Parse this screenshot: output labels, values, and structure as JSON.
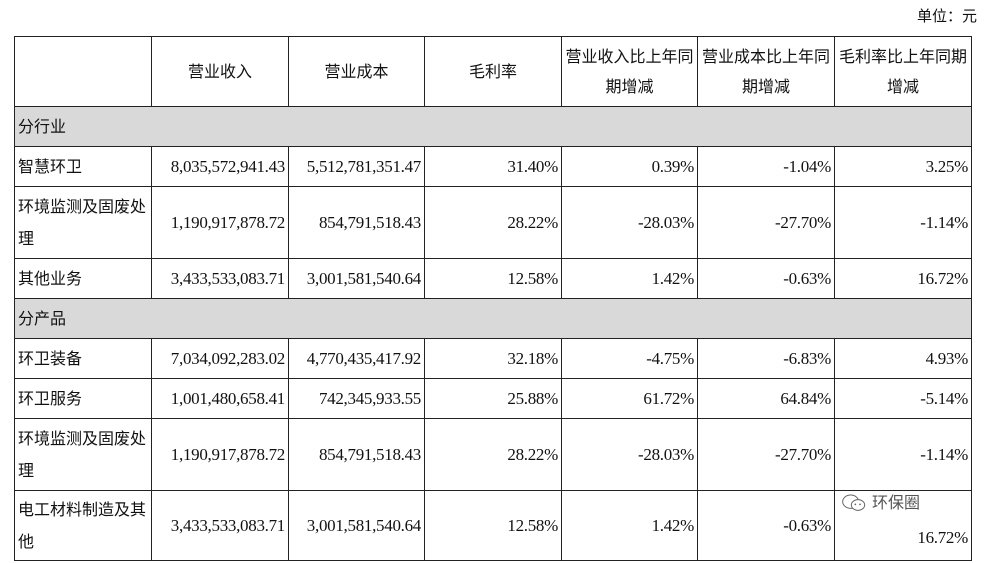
{
  "unit_label": "单位：元",
  "headers": [
    "",
    "营业收入",
    "营业成本",
    "毛利率",
    "营业收入比上年同期增减",
    "营业成本比上年同期增减",
    "毛利率比上年同期增减"
  ],
  "sections": [
    {
      "title": "分行业",
      "rows": [
        [
          "智慧环卫",
          "8,035,572,941.43",
          "5,512,781,351.47",
          "31.40%",
          "0.39%",
          "-1.04%",
          "3.25%"
        ],
        [
          "环境监测及固废处理",
          "1,190,917,878.72",
          "854,791,518.43",
          "28.22%",
          "-28.03%",
          "-27.70%",
          "-1.14%"
        ],
        [
          "其他业务",
          "3,433,533,083.71",
          "3,001,581,540.64",
          "12.58%",
          "1.42%",
          "-0.63%",
          "16.72%"
        ]
      ]
    },
    {
      "title": "分产品",
      "rows": [
        [
          "环卫装备",
          "7,034,092,283.02",
          "4,770,435,417.92",
          "32.18%",
          "-4.75%",
          "-6.83%",
          "4.93%"
        ],
        [
          "环卫服务",
          "1,001,480,658.41",
          "742,345,933.55",
          "25.88%",
          "61.72%",
          "64.84%",
          "-5.14%"
        ],
        [
          "环境监测及固废处理",
          "1,190,917,878.72",
          "854,791,518.43",
          "28.22%",
          "-28.03%",
          "-27.70%",
          "-1.14%"
        ],
        [
          "电工材料制造及其他",
          "3,433,533,083.71",
          "3,001,581,540.64",
          "12.58%",
          "1.42%",
          "-0.63%",
          "16.72%"
        ]
      ]
    }
  ],
  "watermark": {
    "text": "环保圈",
    "icon": "wechat-icon"
  }
}
